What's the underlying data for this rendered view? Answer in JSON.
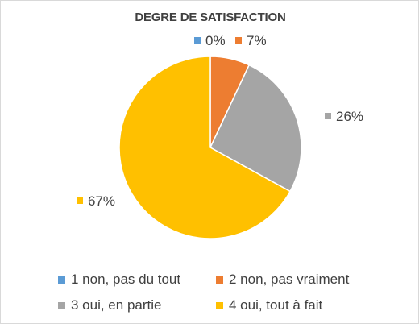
{
  "chart_data": {
    "type": "pie",
    "title": "DEGRE DE SATISFACTION",
    "categories": [
      "1 non, pas du tout",
      "2 non, pas vraiment",
      "3 oui, en partie",
      "4 oui, tout à fait"
    ],
    "values": [
      0,
      7,
      26,
      67
    ],
    "data_labels": [
      "0%",
      "7%",
      "26%",
      "67%"
    ],
    "unit": "%",
    "colors": [
      "#5b9bd5",
      "#ed7d31",
      "#a5a5a5",
      "#ffc000"
    ],
    "legend_position": "bottom"
  }
}
